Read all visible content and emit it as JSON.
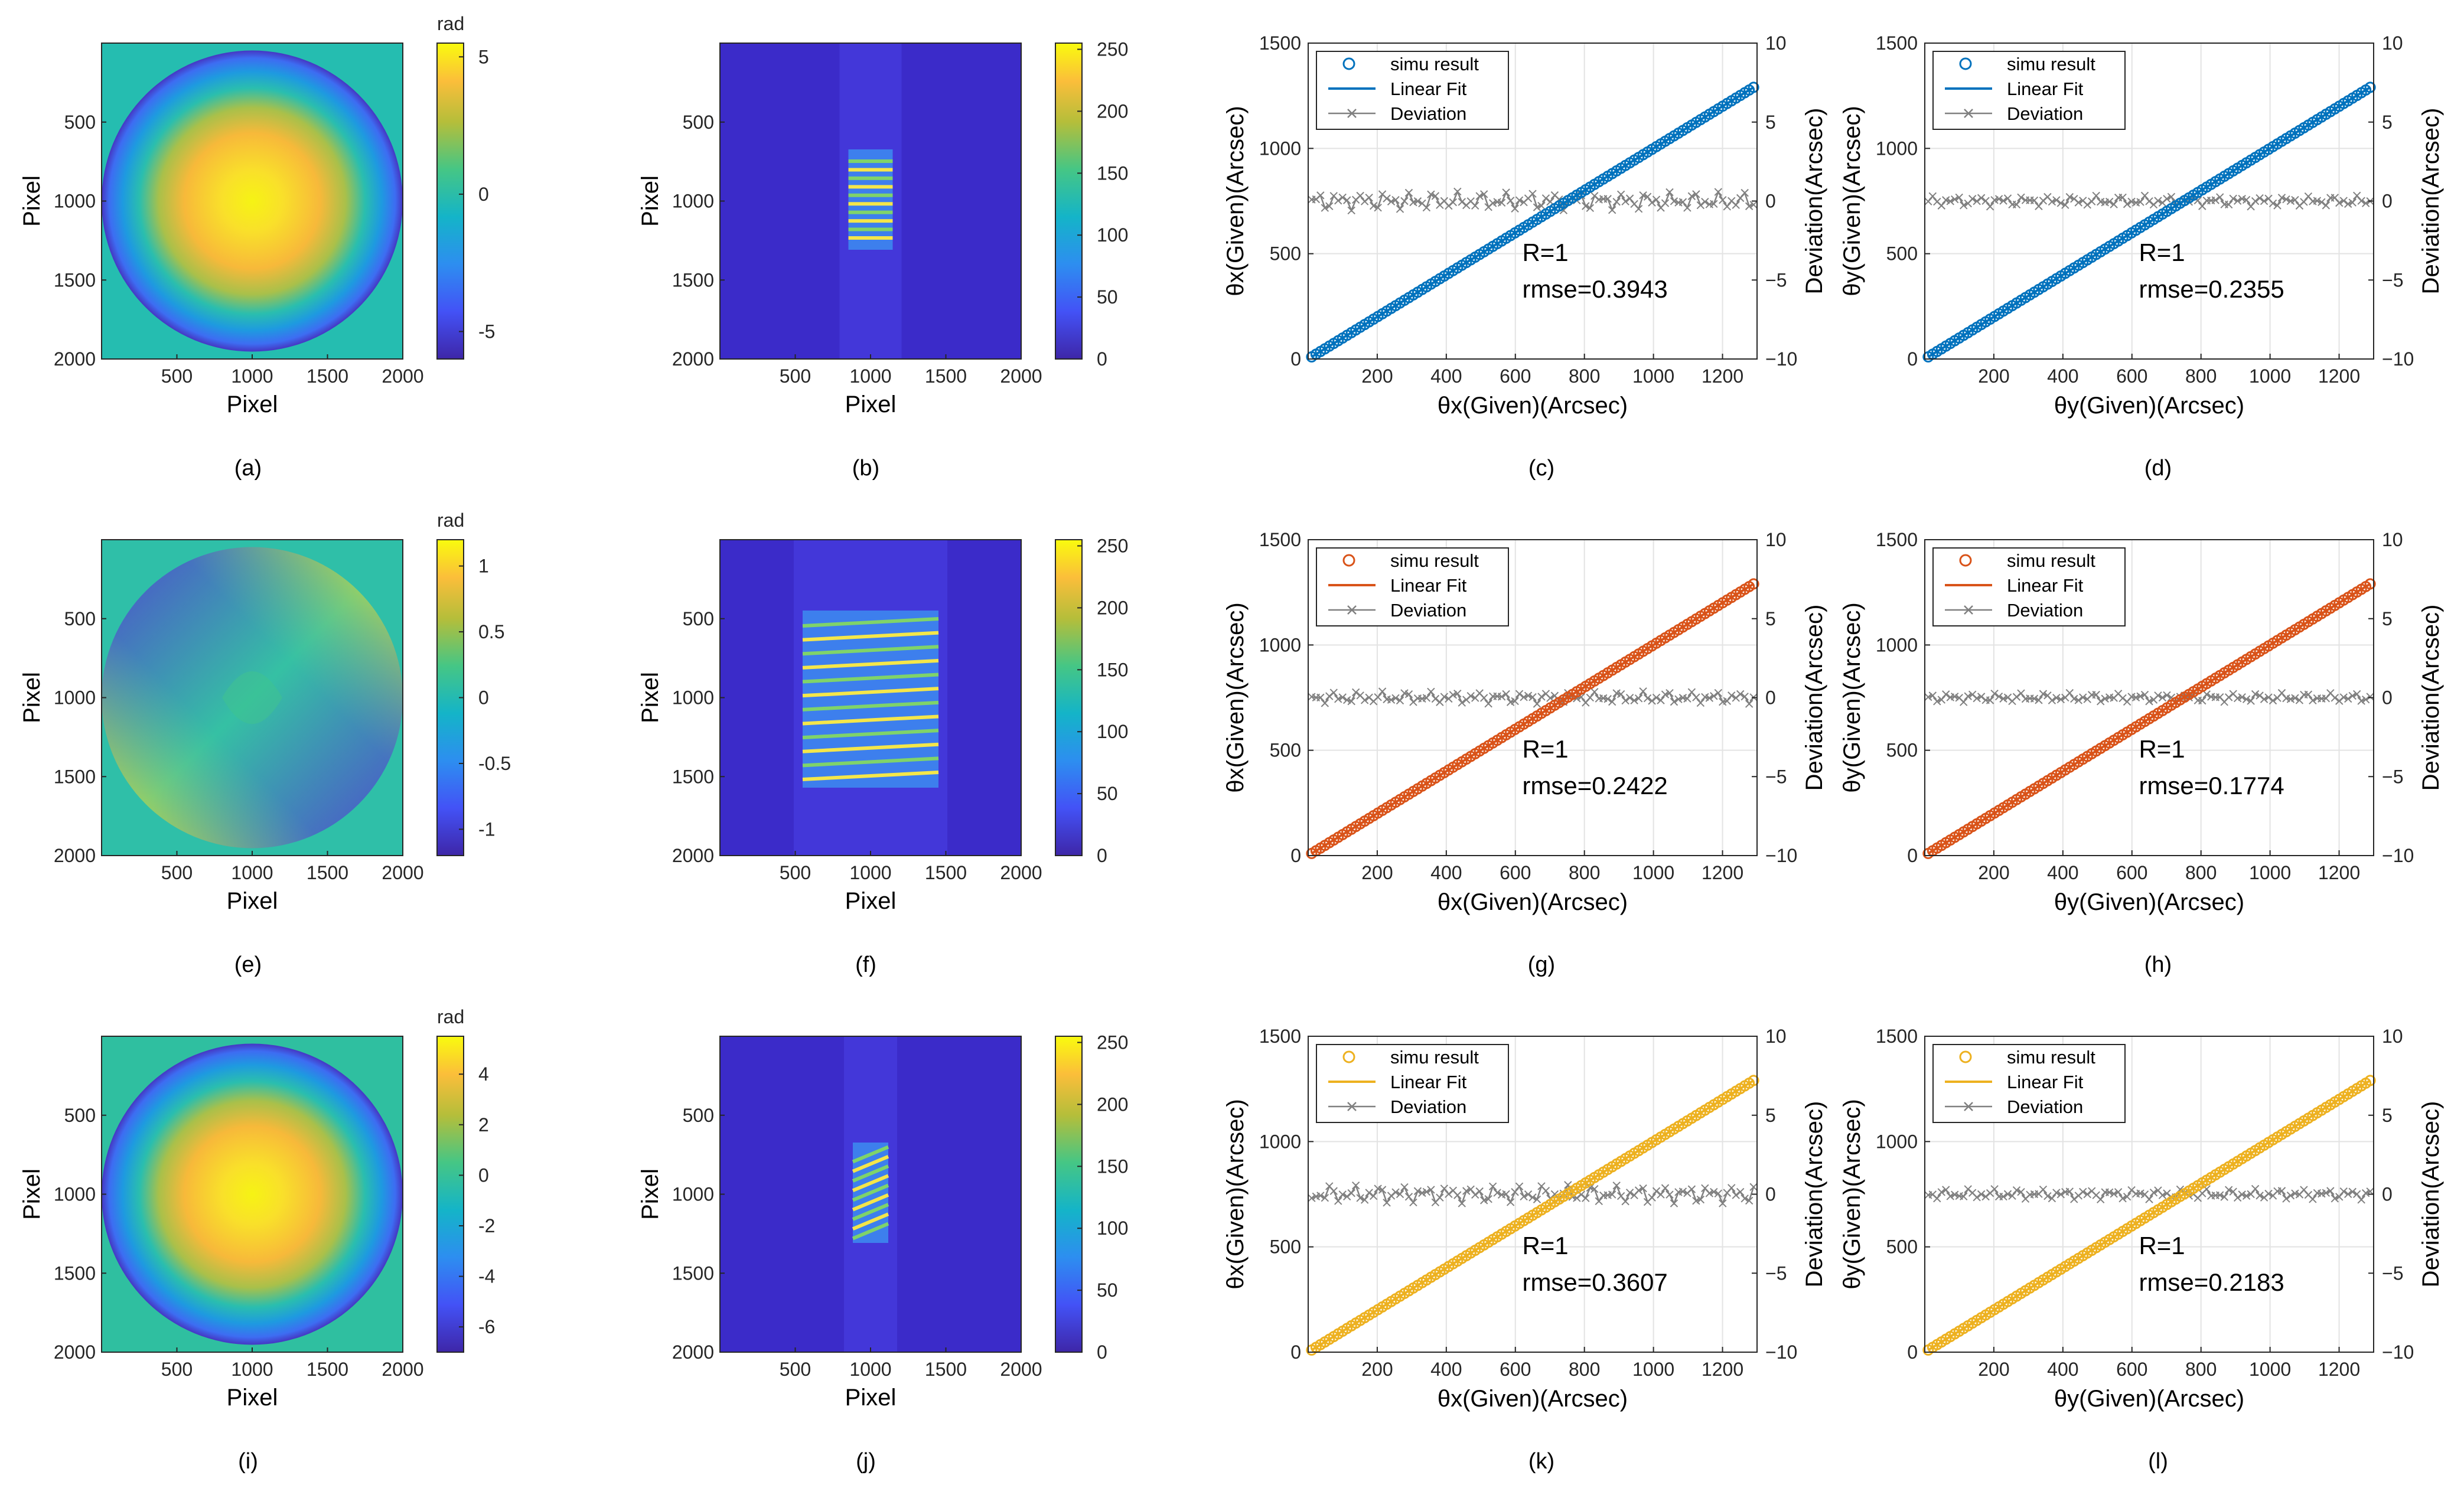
{
  "colors": {
    "blue": "#0072BD",
    "orange": "#D95319",
    "yellow": "#EDB120",
    "gray": "#808080"
  },
  "chart_data": [
    {
      "id": "a",
      "caption": "(a)",
      "type": "heatmap",
      "title": "",
      "xlabel": "Pixel",
      "ylabel": "Pixel",
      "xticks": [
        "500",
        "1000",
        "1500",
        "2000"
      ],
      "yticks": [
        "500",
        "1000",
        "1500",
        "2000"
      ],
      "colorbar": {
        "label": "rad",
        "ticks": [
          "5",
          "0",
          "-5"
        ],
        "range": [
          -6,
          5.5
        ]
      },
      "pattern": "defocus"
    },
    {
      "id": "b",
      "caption": "(b)",
      "type": "heatmap",
      "title": "",
      "xlabel": "Pixel",
      "ylabel": "Pixel",
      "xticks": [
        "500",
        "1000",
        "1500",
        "2000"
      ],
      "yticks": [
        "500",
        "1000",
        "1500",
        "2000"
      ],
      "colorbar": {
        "label": "",
        "ticks": [
          "250",
          "200",
          "150",
          "100",
          "50",
          "0"
        ],
        "range": [
          0,
          255
        ]
      },
      "pattern": "fringes-narrow"
    },
    {
      "id": "c",
      "caption": "(c)",
      "type": "scatter",
      "xlabel": "θx(Given)(Arcsec)",
      "ylabel": "θx(Given)(Arcsec)",
      "y2label": "Deviation(Arcsec)",
      "xlim": [
        0,
        1300
      ],
      "ylim": [
        0,
        1500
      ],
      "y2lim": [
        -10,
        10
      ],
      "xticks": [
        "200",
        "400",
        "600",
        "800",
        "1000",
        "1200"
      ],
      "yticks": [
        "0",
        "500",
        "1000",
        "1500"
      ],
      "y2ticks": [
        "10",
        "5",
        "0",
        "−5",
        "−10"
      ],
      "color": "blue",
      "legend": [
        "simu result",
        "Linear Fit",
        "Deviation"
      ],
      "R": "R=1",
      "rmse": "rmse=0.3943",
      "fit": {
        "x": [
          10,
          1290
        ],
        "y": [
          10,
          1290
        ]
      },
      "deviation_amplitude": 0.6
    },
    {
      "id": "d",
      "caption": "(d)",
      "type": "scatter",
      "xlabel": "θy(Given)(Arcsec)",
      "ylabel": "θy(Given)(Arcsec)",
      "y2label": "Deviation(Arcsec)",
      "xlim": [
        0,
        1300
      ],
      "ylim": [
        0,
        1500
      ],
      "y2lim": [
        -10,
        10
      ],
      "xticks": [
        "200",
        "400",
        "600",
        "800",
        "1000",
        "1200"
      ],
      "yticks": [
        "0",
        "500",
        "1000",
        "1500"
      ],
      "y2ticks": [
        "10",
        "5",
        "0",
        "−5",
        "−10"
      ],
      "color": "blue",
      "legend": [
        "simu result",
        "Linear Fit",
        "Deviation"
      ],
      "R": "R=1",
      "rmse": "rmse=0.2355",
      "fit": {
        "x": [
          10,
          1290
        ],
        "y": [
          10,
          1290
        ]
      },
      "deviation_amplitude": 0.35
    },
    {
      "id": "e",
      "caption": "(e)",
      "type": "heatmap",
      "title": "",
      "xlabel": "Pixel",
      "ylabel": "Pixel",
      "xticks": [
        "500",
        "1000",
        "1500",
        "2000"
      ],
      "yticks": [
        "500",
        "1000",
        "1500",
        "2000"
      ],
      "colorbar": {
        "label": "rad",
        "ticks": [
          "1",
          "0.5",
          "0",
          "-0.5",
          "-1"
        ],
        "range": [
          -1.2,
          1.2
        ]
      },
      "pattern": "astigmatism"
    },
    {
      "id": "f",
      "caption": "(f)",
      "type": "heatmap",
      "title": "",
      "xlabel": "Pixel",
      "ylabel": "Pixel",
      "xticks": [
        "500",
        "1000",
        "1500",
        "2000"
      ],
      "yticks": [
        "500",
        "1000",
        "1500",
        "2000"
      ],
      "colorbar": {
        "label": "",
        "ticks": [
          "250",
          "200",
          "150",
          "100",
          "50",
          "0"
        ],
        "range": [
          0,
          255
        ]
      },
      "pattern": "fringes-wide"
    },
    {
      "id": "g",
      "caption": "(g)",
      "type": "scatter",
      "xlabel": "θx(Given)(Arcsec)",
      "ylabel": "θx(Given)(Arcsec)",
      "y2label": "Deviation(Arcsec)",
      "xlim": [
        0,
        1300
      ],
      "ylim": [
        0,
        1500
      ],
      "y2lim": [
        -10,
        10
      ],
      "xticks": [
        "200",
        "400",
        "600",
        "800",
        "1000",
        "1200"
      ],
      "yticks": [
        "0",
        "500",
        "1000",
        "1500"
      ],
      "y2ticks": [
        "10",
        "5",
        "0",
        "−5",
        "−10"
      ],
      "color": "orange",
      "legend": [
        "simu result",
        "Linear Fit",
        "Deviation"
      ],
      "R": "R=1",
      "rmse": "rmse=0.2422",
      "fit": {
        "x": [
          10,
          1290
        ],
        "y": [
          10,
          1290
        ]
      },
      "deviation_amplitude": 0.4
    },
    {
      "id": "h",
      "caption": "(h)",
      "type": "scatter",
      "xlabel": "θy(Given)(Arcsec)",
      "ylabel": "θy(Given)(Arcsec)",
      "y2label": "Deviation(Arcsec)",
      "xlim": [
        0,
        1300
      ],
      "ylim": [
        0,
        1500
      ],
      "y2lim": [
        -10,
        10
      ],
      "xticks": [
        "200",
        "400",
        "600",
        "800",
        "1000",
        "1200"
      ],
      "yticks": [
        "0",
        "500",
        "1000",
        "1500"
      ],
      "y2ticks": [
        "10",
        "5",
        "0",
        "−5",
        "−10"
      ],
      "color": "orange",
      "legend": [
        "simu result",
        "Linear Fit",
        "Deviation"
      ],
      "R": "R=1",
      "rmse": "rmse=0.1774",
      "fit": {
        "x": [
          10,
          1290
        ],
        "y": [
          10,
          1290
        ]
      },
      "deviation_amplitude": 0.3
    },
    {
      "id": "i",
      "caption": "(i)",
      "type": "heatmap",
      "title": "",
      "xlabel": "Pixel",
      "ylabel": "Pixel",
      "xticks": [
        "500",
        "1000",
        "1500",
        "2000"
      ],
      "yticks": [
        "500",
        "1000",
        "1500",
        "2000"
      ],
      "colorbar": {
        "label": "rad",
        "ticks": [
          "4",
          "2",
          "0",
          "-2",
          "-4",
          "-6"
        ],
        "range": [
          -7,
          5.5
        ]
      },
      "pattern": "defocus"
    },
    {
      "id": "j",
      "caption": "(j)",
      "type": "heatmap",
      "title": "",
      "xlabel": "Pixel",
      "ylabel": "Pixel",
      "xticks": [
        "500",
        "1000",
        "1500",
        "2000"
      ],
      "yticks": [
        "500",
        "1000",
        "1500",
        "2000"
      ],
      "colorbar": {
        "label": "",
        "ticks": [
          "250",
          "200",
          "150",
          "100",
          "50",
          "0"
        ],
        "range": [
          0,
          255
        ]
      },
      "pattern": "fringes-tilted"
    },
    {
      "id": "k",
      "caption": "(k)",
      "type": "scatter",
      "xlabel": "θx(Given)(Arcsec)",
      "ylabel": "θx(Given)(Arcsec)",
      "y2label": "Deviation(Arcsec)",
      "xlim": [
        0,
        1300
      ],
      "ylim": [
        0,
        1500
      ],
      "y2lim": [
        -10,
        10
      ],
      "xticks": [
        "200",
        "400",
        "600",
        "800",
        "1000",
        "1200"
      ],
      "yticks": [
        "0",
        "500",
        "1000",
        "1500"
      ],
      "y2ticks": [
        "10",
        "5",
        "0",
        "−5",
        "−10"
      ],
      "color": "yellow",
      "legend": [
        "simu result",
        "Linear Fit",
        "Deviation"
      ],
      "R": "R=1",
      "rmse": "rmse=0.3607",
      "fit": {
        "x": [
          10,
          1290
        ],
        "y": [
          10,
          1290
        ]
      },
      "deviation_amplitude": 0.6
    },
    {
      "id": "l",
      "caption": "(l)",
      "type": "scatter",
      "xlabel": "θy(Given)(Arcsec)",
      "ylabel": "θy(Given)(Arcsec)",
      "y2label": "Deviation(Arcsec)",
      "xlim": [
        0,
        1300
      ],
      "ylim": [
        0,
        1500
      ],
      "y2lim": [
        -10,
        10
      ],
      "xticks": [
        "200",
        "400",
        "600",
        "800",
        "1000",
        "1200"
      ],
      "yticks": [
        "0",
        "500",
        "1000",
        "1500"
      ],
      "y2ticks": [
        "10",
        "5",
        "0",
        "−5",
        "−10"
      ],
      "color": "yellow",
      "legend": [
        "simu result",
        "Linear Fit",
        "Deviation"
      ],
      "R": "R=1",
      "rmse": "rmse=0.2183",
      "fit": {
        "x": [
          10,
          1290
        ],
        "y": [
          10,
          1290
        ]
      },
      "deviation_amplitude": 0.35
    }
  ]
}
